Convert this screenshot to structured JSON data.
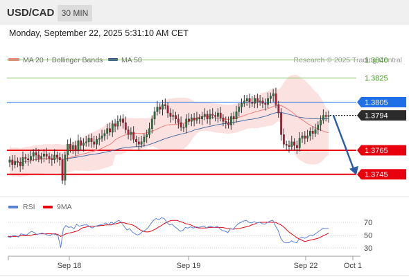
{
  "header": {
    "symbol": "USD/CAD",
    "timeframe": "30 MIN"
  },
  "datetime": "Monday, September 22, 2025 5:31:10 AM CET",
  "legend": {
    "ma20_label": "MA 20 + Bollinger Bands",
    "ma50_label": "MA 50",
    "copyright": "Research © 2025 Trading Central"
  },
  "colors": {
    "up": "#1f7a3a",
    "down": "#c8102e",
    "ma20": "#f08080",
    "ma50": "#4a6fa5",
    "bollinger": "#f9c9c9",
    "resistance": "#8cc66d",
    "resistance_text": "#4a9a2a",
    "support": "#e8000f",
    "last": "#1f6fe6",
    "rsi": "#5b80d8",
    "rsi_ma": "#e8000f"
  },
  "chart_data": [
    {
      "type": "candlestick",
      "x_ticks": [
        "Sep 18",
        "Sep 19",
        "Sep 22",
        "Oct 1"
      ],
      "ylim": [
        1.3727,
        1.3845
      ],
      "levels": [
        {
          "value": 1.384,
          "label": "1.3840",
          "kind": "resistance"
        },
        {
          "value": 1.3825,
          "label": "1.3825",
          "kind": "resistance"
        },
        {
          "value": 1.3805,
          "label": "1.3805",
          "kind": "pivot"
        },
        {
          "value": 1.3794,
          "label": "1.3794",
          "kind": "last_price"
        },
        {
          "value": 1.3765,
          "label": "1.3765",
          "kind": "support"
        },
        {
          "value": 1.3745,
          "label": "1.3745",
          "kind": "support"
        }
      ],
      "forecast_arrow": {
        "from": 1.3794,
        "to": 1.3745
      },
      "closes": [
        1.3757,
        1.3753,
        1.3756,
        1.3755,
        1.3752,
        1.3759,
        1.3758,
        1.3757,
        1.376,
        1.3763,
        1.3761,
        1.3758,
        1.376,
        1.3762,
        1.376,
        1.3758,
        1.3757,
        1.3761,
        1.3759,
        1.3757,
        1.374,
        1.3761,
        1.377,
        1.3766,
        1.3769,
        1.3765,
        1.3773,
        1.3769,
        1.3771,
        1.3772,
        1.3775,
        1.3772,
        1.377,
        1.3774,
        1.3775,
        1.3777,
        1.3779,
        1.3783,
        1.378,
        1.3787,
        1.3785,
        1.3789,
        1.3791,
        1.3788,
        1.3782,
        1.3778,
        1.378,
        1.3774,
        1.3772,
        1.377,
        1.3772,
        1.3776,
        1.3778,
        1.3783,
        1.3791,
        1.3797,
        1.3801,
        1.3799,
        1.3803,
        1.3802,
        1.3796,
        1.3793,
        1.3794,
        1.3791,
        1.3788,
        1.3784,
        1.3784,
        1.3791,
        1.3789,
        1.3792,
        1.379,
        1.3792,
        1.3791,
        1.3793,
        1.3795,
        1.3791,
        1.3795,
        1.3794,
        1.3793,
        1.3796,
        1.3792,
        1.3789,
        1.3788,
        1.3786,
        1.3793,
        1.3791,
        1.3797,
        1.3801,
        1.3804,
        1.3806,
        1.3808,
        1.3805,
        1.3804,
        1.3808,
        1.3805,
        1.3806,
        1.3804,
        1.3803,
        1.3808,
        1.381,
        1.3812,
        1.3803,
        1.3796,
        1.3778,
        1.377,
        1.3769,
        1.3768,
        1.3772,
        1.3769,
        1.3767,
        1.3775,
        1.3777,
        1.3775,
        1.3777,
        1.3781,
        1.3779,
        1.3782,
        1.3786,
        1.379,
        1.3794,
        1.3793,
        1.3794
      ]
    },
    {
      "type": "line",
      "name": "rsi",
      "y_ticks": [
        "70",
        "50",
        "30"
      ],
      "series": [
        {
          "name": "RSI",
          "values": [
            48,
            46,
            49,
            49,
            47,
            52,
            51,
            50,
            53,
            56,
            54,
            51,
            52,
            53,
            52,
            50,
            49,
            52,
            51,
            49,
            30,
            60,
            65,
            62,
            63,
            60,
            67,
            64,
            65,
            66,
            66,
            63,
            61,
            64,
            65,
            66,
            67,
            69,
            66,
            70,
            68,
            71,
            73,
            69,
            63,
            58,
            60,
            55,
            52,
            50,
            52,
            56,
            58,
            62,
            68,
            73,
            76,
            74,
            77,
            76,
            70,
            66,
            67,
            63,
            60,
            56,
            57,
            62,
            61,
            63,
            61,
            63,
            62,
            63,
            64,
            61,
            64,
            63,
            62,
            64,
            60,
            57,
            56,
            54,
            60,
            59,
            64,
            68,
            70,
            72,
            73,
            70,
            69,
            71,
            69,
            70,
            68,
            67,
            70,
            72,
            73,
            64,
            57,
            45,
            39,
            38,
            38,
            41,
            39,
            38,
            45,
            47,
            45,
            47,
            50,
            49,
            52,
            55,
            58,
            61,
            60,
            61
          ]
        },
        {
          "name": "9MA",
          "values": [
            48,
            48,
            48,
            48,
            48,
            49,
            49,
            49,
            49,
            50,
            51,
            51,
            52,
            52,
            52,
            52,
            52,
            52,
            52,
            51,
            48,
            50,
            52,
            53,
            54,
            55,
            56,
            58,
            61,
            62,
            63,
            64,
            64,
            64,
            64,
            65,
            65,
            66,
            66,
            66,
            67,
            68,
            69,
            70,
            69,
            68,
            67,
            66,
            64,
            61,
            58,
            56,
            55,
            55,
            56,
            58,
            60,
            63,
            65,
            68,
            70,
            72,
            73,
            73,
            73,
            71,
            70,
            68,
            67,
            66,
            64,
            62,
            61,
            61,
            61,
            61,
            62,
            62,
            62,
            62,
            62,
            62,
            61,
            60,
            60,
            59,
            60,
            60,
            61,
            62,
            63,
            64,
            66,
            67,
            69,
            70,
            70,
            70,
            70,
            70,
            70,
            70,
            68,
            66,
            63,
            59,
            55,
            52,
            49,
            46,
            44,
            42,
            40,
            41,
            42,
            43,
            44,
            45,
            47,
            49,
            51,
            53
          ]
        }
      ]
    }
  ]
}
